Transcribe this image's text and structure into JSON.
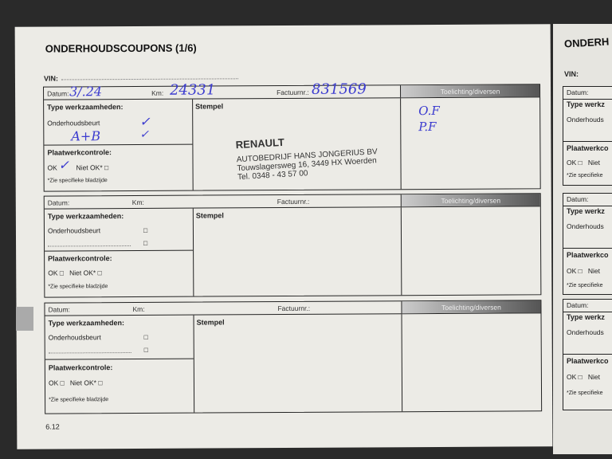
{
  "left_page": {
    "title": "ONDERHOUDSCOUPONS (1/6)",
    "vin_label": "VIN:",
    "page_number": "6.12",
    "labels": {
      "datum": "Datum:",
      "km": "Km:",
      "factuurnr": "Factuurnr.:",
      "toelichting": "Toelichting/diversen",
      "type": "Type werkzaamheden:",
      "onderhoudsbeurt": "Onderhoudsbeurt",
      "stempel": "Stempel",
      "plaatwerk": "Plaatwerkcontrole:",
      "ok": "OK",
      "niet_ok": "Niet OK*",
      "checkbox": "□",
      "zie": "*Zie specifieke bladzijde"
    },
    "coupon1": {
      "datum": "3/.24",
      "km": "24331",
      "factuurnr": "831569",
      "type_extra": "A+B",
      "check1": "✓",
      "check2": "✓",
      "ok_mark": "✓",
      "toelichting": [
        "O.F",
        "P.F"
      ],
      "stamp": {
        "brand": "RENAULT",
        "line1": "AUTOBEDRIJF HANS JONGERIUS BV",
        "line2": "Touwslagersweg 16, 3449 HX Woerden",
        "line3": "Tel. 0348 - 43 57 00"
      }
    }
  },
  "right_page": {
    "title": "ONDERH",
    "vin_label": "VIN:",
    "labels": {
      "datum": "Datum:",
      "type": "Type werkz",
      "onderhoudsbeurt": "Onderhouds",
      "plaatwerk": "Plaatwerkco",
      "ok": "OK □",
      "niet": "Niet",
      "zie": "*Zie specifieke"
    }
  }
}
